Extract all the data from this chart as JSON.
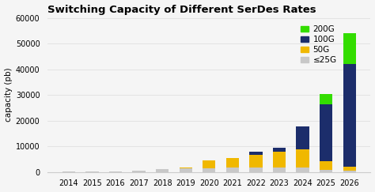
{
  "years": [
    "2014",
    "2015",
    "2016",
    "2017",
    "2018",
    "2019",
    "2020",
    "2021",
    "2022",
    "2023",
    "2024",
    "2025",
    "2026"
  ],
  "le25g": [
    100,
    200,
    300,
    600,
    1000,
    1400,
    1600,
    1800,
    1800,
    1800,
    1800,
    800,
    400
  ],
  "50g": [
    0,
    0,
    0,
    0,
    0,
    300,
    2800,
    3800,
    5000,
    6000,
    7000,
    3500,
    1600
  ],
  "100g": [
    0,
    0,
    0,
    0,
    0,
    0,
    0,
    0,
    1000,
    1500,
    9000,
    22000,
    40000
  ],
  "200g": [
    0,
    0,
    0,
    0,
    0,
    0,
    0,
    0,
    0,
    0,
    0,
    4000,
    12000
  ],
  "color_le25g": "#c8c8c8",
  "color_50g": "#f0b800",
  "color_100g": "#1c2d6b",
  "color_200g": "#33dd00",
  "title": "Switching Capacity of Different SerDes Rates",
  "ylabel": "capacity (pb)",
  "ylim": [
    0,
    60000
  ],
  "yticks": [
    0,
    10000,
    20000,
    30000,
    40000,
    50000,
    60000
  ],
  "legend_labels": [
    "200G",
    "100G",
    "50G",
    "≤25G"
  ],
  "background_color": "#f5f5f5",
  "title_fontsize": 9.5,
  "tick_fontsize": 7,
  "ylabel_fontsize": 7.5,
  "legend_fontsize": 7.5
}
